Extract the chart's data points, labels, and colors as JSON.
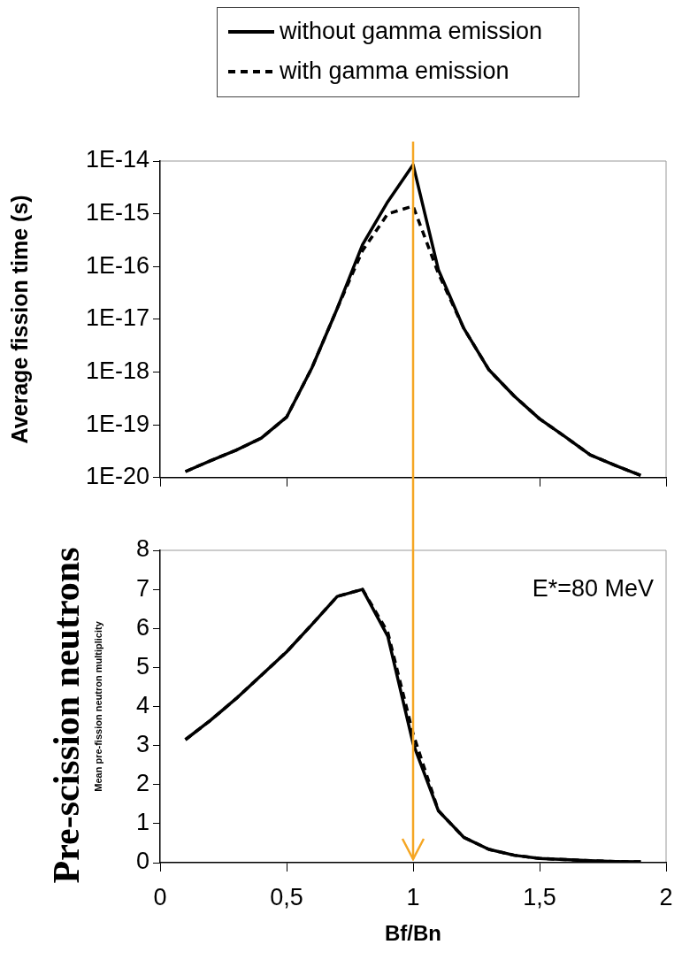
{
  "chart_data": [
    {
      "type": "line",
      "ylabel": "Average fission time (s)",
      "log": "y",
      "legend": "top",
      "line_style": "solid",
      "marker": "none",
      "tick_labels": "y",
      "grid": false,
      "x": [
        0.1,
        0.2,
        0.3,
        0.4,
        0.5,
        0.6,
        0.7,
        0.8,
        0.9,
        1.0,
        1.1,
        1.2,
        1.3,
        1.4,
        1.5,
        1.6,
        1.7,
        1.8,
        1.9
      ],
      "xlim": [
        0,
        2
      ],
      "xticks": [
        {
          "value": 0,
          "label": null
        },
        {
          "value": 0.5,
          "label": null
        },
        {
          "value": 1,
          "label": null
        },
        {
          "value": 1.5,
          "label": null
        },
        {
          "value": 2,
          "label": null
        }
      ],
      "ylim": [
        1e-20,
        1e-14
      ],
      "yticks": [
        {
          "value": 1e-20,
          "label": "1E-20"
        },
        {
          "value": 1e-19,
          "label": "1E-19"
        },
        {
          "value": 1e-18,
          "label": "1E-18"
        },
        {
          "value": 1e-17,
          "label": "1E-17"
        },
        {
          "value": 1e-16,
          "label": "1E-16"
        },
        {
          "value": 1e-15,
          "label": "1E-15"
        },
        {
          "value": 1e-14,
          "label": "1E-14"
        }
      ],
      "series": [
        {
          "name": "without gamma emission",
          "color": "#000000",
          "values": [
            1.3e-20,
            2.1e-20,
            3.3e-20,
            5.6e-20,
            1.4e-19,
            1.2e-18,
            1.6e-17,
            2.6e-16,
            1.7e-15,
            8.5e-15,
            8.7e-17,
            6.8e-18,
            1.1e-18,
            3.5e-19,
            1.3e-19,
            6e-20,
            2.7e-20,
            1.7e-20,
            1.1e-20
          ]
        },
        {
          "name": "with gamma emission",
          "color": "#000000",
          "line_style": "dashed",
          "values": [
            1.3e-20,
            2.1e-20,
            3.3e-20,
            5.6e-20,
            1.4e-19,
            1.2e-18,
            1.6e-17,
            2e-16,
            1e-15,
            1.4e-15,
            7.4e-17,
            6.8e-18,
            1.1e-18,
            3.5e-19,
            1.3e-19,
            6e-20,
            2.7e-20,
            1.7e-20,
            1.1e-20
          ]
        }
      ],
      "ref_lines": [
        {
          "axis": "x",
          "value": 1,
          "color": "#f5a623"
        }
      ]
    },
    {
      "type": "line",
      "ylabel": "Mean pre-fission neutron multiplicity",
      "xlabel": "Bf/Bn",
      "legend": false,
      "line_style": "solid",
      "marker": "none",
      "grid": false,
      "annotations": [
        "Pre-scission neutrons",
        "E*=80 MeV"
      ],
      "x": [
        0.1,
        0.2,
        0.3,
        0.4,
        0.5,
        0.6,
        0.7,
        0.8,
        0.9,
        1.0,
        1.1,
        1.2,
        1.3,
        1.4,
        1.5,
        1.6,
        1.7,
        1.8,
        1.9
      ],
      "xlim": [
        0,
        2
      ],
      "xticks": [
        0,
        {
          "value": 0.5,
          "label": "0,5"
        },
        1,
        {
          "value": 1.5,
          "label": "1,5"
        },
        2
      ],
      "ylim": [
        0,
        8
      ],
      "yticks": [
        0,
        1,
        2,
        3,
        4,
        5,
        6,
        7,
        8
      ],
      "series": [
        {
          "color": "#000000",
          "values": [
            3.15,
            3.65,
            4.2,
            4.8,
            5.4,
            6.1,
            6.82,
            7.0,
            5.8,
            3.05,
            1.33,
            0.65,
            0.34,
            0.19,
            0.11,
            0.08,
            0.05,
            0.03,
            0.02
          ]
        },
        {
          "color": "#000000",
          "line_style": "dashed",
          "values": [
            3.15,
            3.65,
            4.2,
            4.8,
            5.4,
            6.1,
            6.82,
            7.0,
            5.9,
            3.3,
            1.33,
            0.65,
            0.34,
            0.19,
            0.11,
            0.08,
            0.05,
            0.03,
            0.02
          ]
        }
      ],
      "ref_lines": [
        {
          "axis": "x",
          "value": 1,
          "color": "#f5a623"
        }
      ]
    }
  ]
}
